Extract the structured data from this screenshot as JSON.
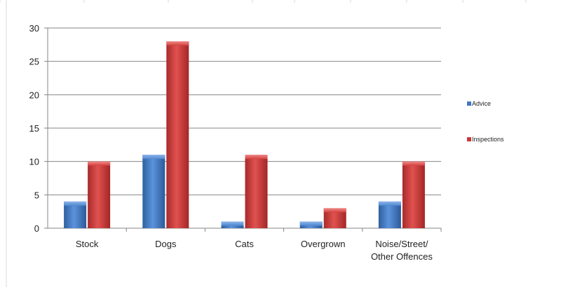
{
  "chart_data": {
    "type": "bar",
    "categories": [
      "Stock",
      "Dogs",
      "Cats",
      "Overgrown",
      "Noise/Street/ Other Offences"
    ],
    "category_lines": [
      [
        "Stock"
      ],
      [
        "Dogs"
      ],
      [
        "Cats"
      ],
      [
        "Overgrown"
      ],
      [
        "Noise/Street/",
        "Other Offences"
      ]
    ],
    "series": [
      {
        "name": "Advice",
        "values": [
          4,
          11,
          1,
          1,
          4
        ],
        "color": "#3f76c2"
      },
      {
        "name": "Inspections",
        "values": [
          10,
          28,
          11,
          3,
          10
        ],
        "color": "#c8393a"
      }
    ],
    "title": "",
    "xlabel": "",
    "ylabel": "",
    "ylim": [
      0,
      30
    ],
    "yticks": [
      0,
      5,
      10,
      15,
      20,
      25,
      30
    ],
    "grid": true,
    "legend_position": "right"
  },
  "colors": {
    "gridline": "#868686",
    "sheet_grid": "#d9d9d9",
    "axis": "#868686"
  }
}
